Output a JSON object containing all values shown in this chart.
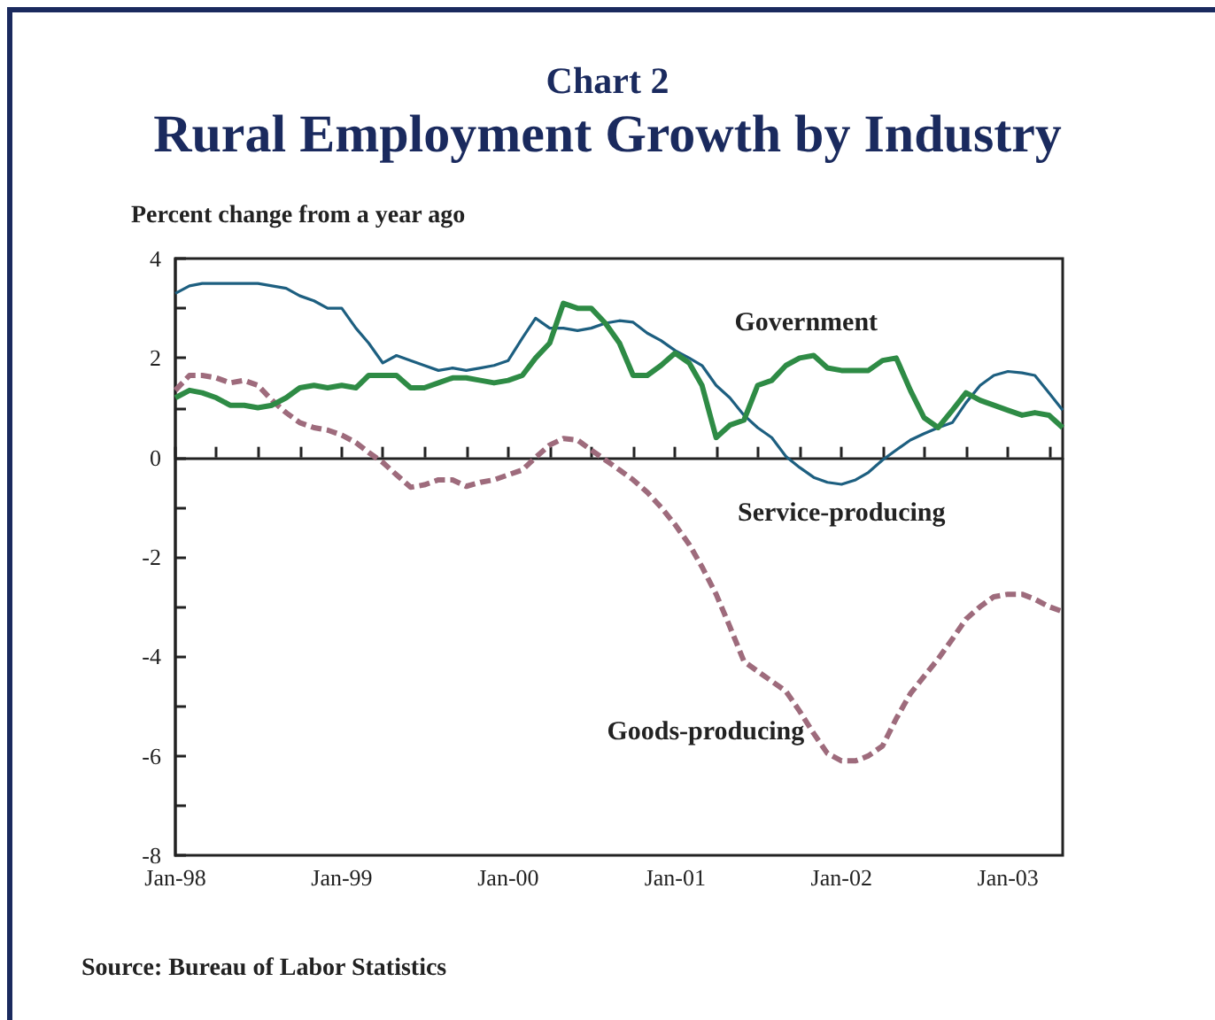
{
  "chart_data": {
    "type": "line",
    "subtitle": "Chart 2",
    "title": "Rural Employment Growth by Industry",
    "ylabel": "Percent change from a year ago",
    "annotations": [
      "Source: Bureau of Labor Statistics"
    ],
    "x": [
      "1998-01",
      "1998-02",
      "1998-03",
      "1998-04",
      "1998-05",
      "1998-06",
      "1998-07",
      "1998-08",
      "1998-09",
      "1998-10",
      "1998-11",
      "1998-12",
      "1999-01",
      "1999-02",
      "1999-03",
      "1999-04",
      "1999-05",
      "1999-06",
      "1999-07",
      "1999-08",
      "1999-09",
      "1999-10",
      "1999-11",
      "1999-12",
      "2000-01",
      "2000-02",
      "2000-03",
      "2000-04",
      "2000-05",
      "2000-06",
      "2000-07",
      "2000-08",
      "2000-09",
      "2000-10",
      "2000-11",
      "2000-12",
      "2001-01",
      "2001-02",
      "2001-03",
      "2001-04",
      "2001-05",
      "2001-06",
      "2001-07",
      "2001-08",
      "2001-09",
      "2001-10",
      "2001-11",
      "2001-12",
      "2002-01",
      "2002-02",
      "2002-03",
      "2002-04",
      "2002-05",
      "2002-06",
      "2002-07",
      "2002-08",
      "2002-09",
      "2002-10",
      "2002-11",
      "2002-12",
      "2003-01",
      "2003-02",
      "2003-03",
      "2003-04",
      "2003-05"
    ],
    "series": [
      {
        "name": "Government",
        "color": "#2e8b45",
        "line_style": "solid",
        "values": [
          1.2,
          1.35,
          1.3,
          1.2,
          1.05,
          1.05,
          1.0,
          1.05,
          1.2,
          1.4,
          1.45,
          1.4,
          1.45,
          1.4,
          1.65,
          1.65,
          1.65,
          1.4,
          1.4,
          1.5,
          1.6,
          1.6,
          1.55,
          1.5,
          1.55,
          1.65,
          2.0,
          2.3,
          3.1,
          3.0,
          3.0,
          2.7,
          2.3,
          1.65,
          1.65,
          1.85,
          2.1,
          1.9,
          1.45,
          0.4,
          0.65,
          0.75,
          1.45,
          1.55,
          1.85,
          2.0,
          2.05,
          1.8,
          1.75,
          1.75,
          1.75,
          1.95,
          2.0,
          1.35,
          0.8,
          0.6,
          0.95,
          1.3,
          1.15,
          1.05,
          0.95,
          0.85,
          0.9,
          0.85,
          0.6
        ]
      },
      {
        "name": "Service-producing",
        "color": "#1d5f80",
        "line_style": "solid",
        "values": [
          3.3,
          3.45,
          3.5,
          3.5,
          3.5,
          3.5,
          3.5,
          3.45,
          3.4,
          3.25,
          3.15,
          3.0,
          3.0,
          2.6,
          2.3,
          1.9,
          2.05,
          1.95,
          1.85,
          1.75,
          1.8,
          1.75,
          1.8,
          1.85,
          1.95,
          2.4,
          2.8,
          2.6,
          2.6,
          2.55,
          2.6,
          2.7,
          2.75,
          2.72,
          2.5,
          2.35,
          2.15,
          2.0,
          1.85,
          1.45,
          1.2,
          0.85,
          0.6,
          0.4,
          0.02,
          -0.2,
          -0.4,
          -0.5,
          -0.54,
          -0.45,
          -0.3,
          -0.05,
          0.15,
          0.35,
          0.48,
          0.6,
          0.7,
          1.1,
          1.45,
          1.65,
          1.73,
          1.7,
          1.65,
          1.3,
          0.95
        ]
      },
      {
        "name": "Goods-producing",
        "color": "#9e6b7c",
        "line_style": "dashed",
        "values": [
          1.35,
          1.65,
          1.65,
          1.6,
          1.5,
          1.55,
          1.45,
          1.15,
          0.9,
          0.7,
          0.6,
          0.55,
          0.45,
          0.3,
          0.1,
          -0.1,
          -0.35,
          -0.6,
          -0.55,
          -0.45,
          -0.45,
          -0.58,
          -0.5,
          -0.45,
          -0.35,
          -0.25,
          0.0,
          0.25,
          0.38,
          0.35,
          0.15,
          -0.05,
          -0.25,
          -0.45,
          -0.7,
          -1.0,
          -1.35,
          -1.75,
          -2.2,
          -2.75,
          -3.4,
          -4.1,
          -4.3,
          -4.5,
          -4.7,
          -5.1,
          -5.55,
          -5.95,
          -6.1,
          -6.1,
          -6.0,
          -5.8,
          -5.25,
          -4.75,
          -4.4,
          -4.05,
          -3.65,
          -3.25,
          -3.0,
          -2.8,
          -2.75,
          -2.75,
          -2.85,
          -3.0,
          -3.1
        ]
      }
    ],
    "xlim": [
      "1998-01",
      "2003-05"
    ],
    "xticks": [
      {
        "value": "1998-01",
        "label": "Jan-98"
      },
      {
        "value": "1998-04",
        "label": null
      },
      {
        "value": "1998-07",
        "label": null
      },
      {
        "value": "1998-10",
        "label": null
      },
      {
        "value": "1999-01",
        "label": "Jan-99"
      },
      {
        "value": "1999-04",
        "label": null
      },
      {
        "value": "1999-07",
        "label": null
      },
      {
        "value": "1999-10",
        "label": null
      },
      {
        "value": "2000-01",
        "label": "Jan-00"
      },
      {
        "value": "2000-04",
        "label": null
      },
      {
        "value": "2000-07",
        "label": null
      },
      {
        "value": "2000-10",
        "label": null
      },
      {
        "value": "2001-01",
        "label": "Jan-01"
      },
      {
        "value": "2001-04",
        "label": null
      },
      {
        "value": "2001-07",
        "label": null
      },
      {
        "value": "2001-10",
        "label": null
      },
      {
        "value": "2002-01",
        "label": "Jan-02"
      },
      {
        "value": "2002-04",
        "label": null
      },
      {
        "value": "2002-07",
        "label": null
      },
      {
        "value": "2002-10",
        "label": null
      },
      {
        "value": "2003-01",
        "label": "Jan-03"
      },
      {
        "value": "2003-04",
        "label": null
      }
    ],
    "ylim": [
      -8,
      4
    ],
    "yticks": [
      -8,
      {
        "value": -7,
        "label": null
      },
      -6,
      {
        "value": -5,
        "label": null
      },
      -4,
      {
        "value": -3,
        "label": null
      },
      -2,
      {
        "value": -1,
        "label": null
      },
      0,
      {
        "value": 1,
        "label": null
      },
      2,
      {
        "value": 3,
        "label": null
      },
      4
    ],
    "marker": "none"
  }
}
